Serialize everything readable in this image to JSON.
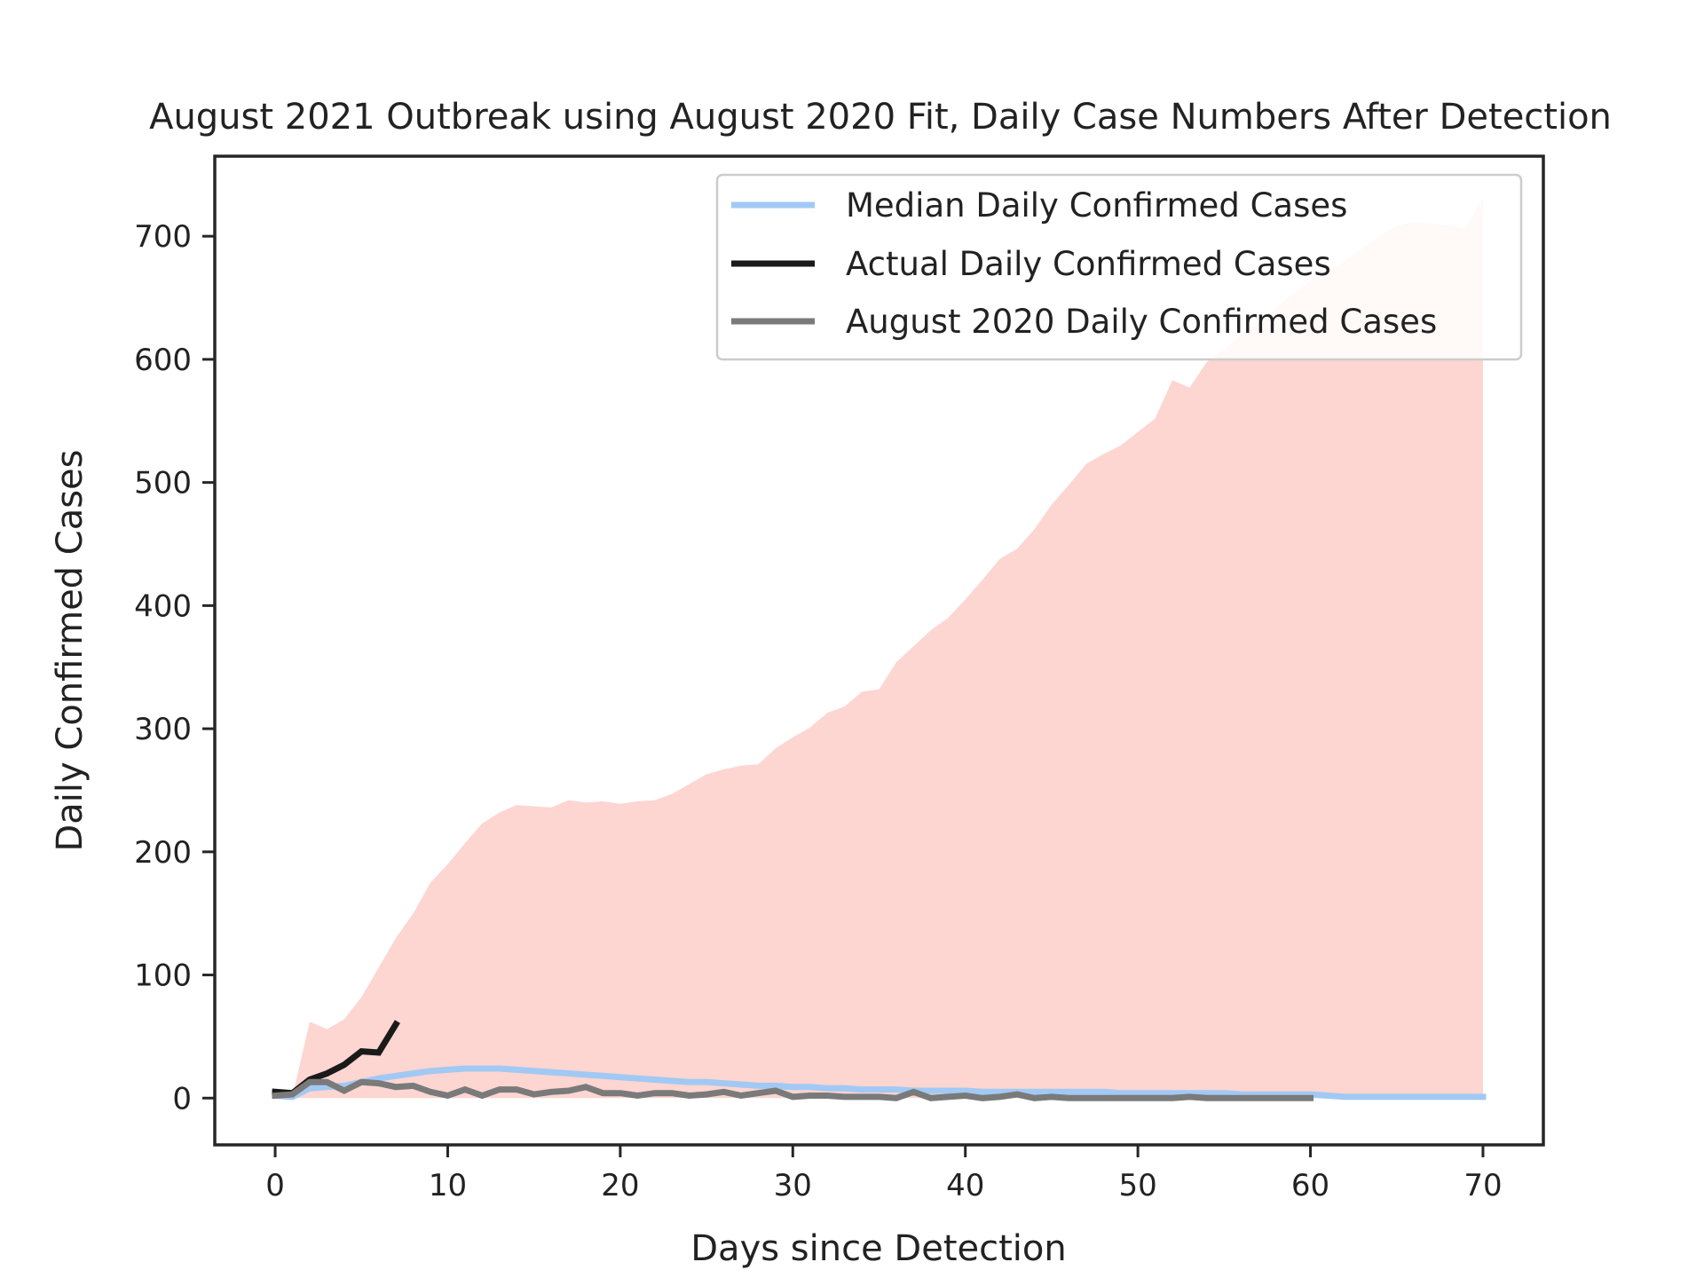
{
  "chart_data": {
    "type": "line",
    "title": "August 2021 Outbreak using August 2020 Fit, Daily Case Numbers After Detection",
    "xlabel": "Days since Detection",
    "ylabel": "Daily Confirmed Cases",
    "xlim": [
      -3.5,
      73.5
    ],
    "ylim": [
      -38,
      765
    ],
    "xticks": [
      0,
      10,
      20,
      30,
      40,
      50,
      60,
      70
    ],
    "yticks": [
      0,
      100,
      200,
      300,
      400,
      500,
      600,
      700
    ],
    "grid": false,
    "legend_position": "top-right",
    "band": {
      "x": [
        0,
        1,
        2,
        3,
        4,
        5,
        6,
        7,
        8,
        9,
        10,
        11,
        12,
        13,
        14,
        15,
        16,
        17,
        18,
        19,
        20,
        21,
        22,
        23,
        24,
        25,
        26,
        27,
        28,
        29,
        30,
        31,
        32,
        33,
        34,
        35,
        36,
        37,
        38,
        39,
        40,
        41,
        42,
        43,
        44,
        45,
        46,
        47,
        48,
        49,
        50,
        51,
        52,
        53,
        54,
        55,
        56,
        57,
        58,
        59,
        60,
        61,
        62,
        63,
        64,
        65,
        66,
        67,
        68,
        69,
        70
      ],
      "upper": [
        0,
        1,
        62,
        56,
        64,
        82,
        106,
        130,
        150,
        175,
        190,
        207,
        223,
        232,
        238,
        237,
        236,
        242,
        240,
        241,
        239,
        241,
        242,
        247,
        255,
        263,
        267,
        270,
        271,
        284,
        293,
        301,
        313,
        318,
        330,
        332,
        354,
        367,
        380,
        390,
        405,
        421,
        438,
        446,
        462,
        482,
        498,
        515,
        523,
        530,
        541,
        552,
        583,
        577,
        598,
        608,
        620,
        630,
        642,
        653,
        664,
        672,
        680,
        690,
        700,
        708,
        712,
        710,
        709,
        706,
        732
      ],
      "lower": [
        0,
        0,
        0,
        0,
        0,
        0,
        0,
        0,
        0,
        0,
        0,
        0,
        0,
        0,
        0,
        0,
        0,
        0,
        0,
        0,
        0,
        0,
        0,
        0,
        0,
        0,
        0,
        0,
        0,
        0,
        0,
        0,
        0,
        0,
        0,
        0,
        0,
        0,
        0,
        0,
        0,
        0,
        0,
        0,
        0,
        0,
        0,
        0,
        0,
        0,
        0,
        0,
        0,
        0,
        0,
        0,
        0,
        0,
        0,
        0,
        0,
        0,
        0,
        0,
        0,
        0,
        0,
        0,
        0,
        0,
        0
      ],
      "color": "#fdd5d1"
    },
    "series": [
      {
        "name": "Median Daily Confirmed Cases",
        "color": "#a1c9f4",
        "x": [
          0,
          1,
          2,
          3,
          4,
          5,
          6,
          7,
          8,
          9,
          10,
          11,
          12,
          13,
          14,
          15,
          16,
          17,
          18,
          19,
          20,
          21,
          22,
          23,
          24,
          25,
          26,
          27,
          28,
          29,
          30,
          31,
          32,
          33,
          34,
          35,
          36,
          37,
          38,
          39,
          40,
          41,
          42,
          43,
          44,
          45,
          46,
          47,
          48,
          49,
          50,
          51,
          52,
          53,
          54,
          55,
          56,
          57,
          58,
          59,
          60,
          61,
          62,
          63,
          64,
          65,
          66,
          67,
          68,
          69,
          70
        ],
        "y": [
          2,
          1,
          8,
          9,
          10,
          13,
          16,
          18,
          20,
          22,
          23,
          24,
          24,
          24,
          23,
          22,
          21,
          20,
          19,
          18,
          17,
          16,
          15,
          14,
          13,
          13,
          12,
          11,
          10,
          10,
          9,
          9,
          8,
          8,
          7,
          7,
          7,
          6,
          6,
          6,
          6,
          5,
          5,
          5,
          5,
          5,
          5,
          5,
          5,
          4,
          4,
          4,
          4,
          4,
          4,
          4,
          3,
          3,
          3,
          3,
          3,
          2,
          1,
          1,
          1,
          1,
          1,
          1,
          1,
          1,
          1
        ]
      },
      {
        "name": "Actual Daily Confirmed Cases",
        "color": "#1a1a1a",
        "x": [
          0,
          1,
          2,
          3,
          4,
          5,
          6,
          7
        ],
        "y": [
          5,
          4,
          15,
          20,
          27,
          38,
          37,
          60
        ]
      },
      {
        "name": "August 2020 Daily Confirmed Cases",
        "color": "#7a7a7a",
        "x": [
          0,
          1,
          2,
          3,
          4,
          5,
          6,
          7,
          8,
          9,
          10,
          11,
          12,
          13,
          14,
          15,
          16,
          17,
          18,
          19,
          20,
          21,
          22,
          23,
          24,
          25,
          26,
          27,
          28,
          29,
          30,
          31,
          32,
          33,
          34,
          35,
          36,
          37,
          38,
          39,
          40,
          41,
          42,
          43,
          44,
          45,
          46,
          47,
          48,
          49,
          50,
          51,
          52,
          53,
          54,
          55,
          56,
          57,
          58,
          59,
          60
        ],
        "y": [
          2,
          3,
          13,
          13,
          6,
          13,
          12,
          9,
          10,
          5,
          2,
          7,
          2,
          7,
          7,
          3,
          5,
          6,
          9,
          4,
          4,
          2,
          4,
          4,
          2,
          3,
          5,
          2,
          4,
          6,
          1,
          2,
          2,
          1,
          1,
          1,
          0,
          5,
          0,
          1,
          2,
          0,
          1,
          3,
          0,
          1,
          0,
          0,
          0,
          0,
          0,
          0,
          0,
          1,
          0,
          0,
          0,
          0,
          0,
          0,
          0
        ]
      }
    ]
  }
}
